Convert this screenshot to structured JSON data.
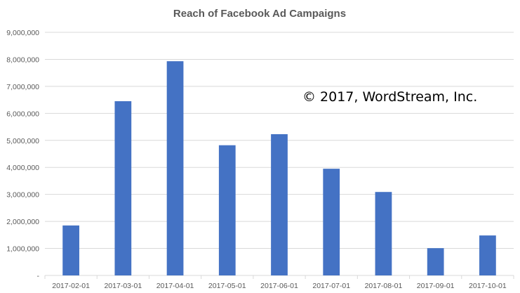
{
  "chart_data": {
    "type": "bar",
    "title": "Reach of Facebook Ad Campaigns",
    "xlabel": "",
    "ylabel": "",
    "categories": [
      "2017-02-01",
      "2017-03-01",
      "2017-04-01",
      "2017-05-01",
      "2017-06-01",
      "2017-07-01",
      "2017-08-01",
      "2017-09-01",
      "2017-10-01"
    ],
    "values": [
      1850000,
      6450000,
      7930000,
      4820000,
      5230000,
      3950000,
      3090000,
      1010000,
      1480000
    ],
    "ylim": [
      0,
      9000000
    ],
    "yticks": [
      0,
      1000000,
      2000000,
      3000000,
      4000000,
      5000000,
      6000000,
      7000000,
      8000000,
      9000000
    ],
    "ytick_labels": [
      "-",
      "1,000,000",
      "2,000,000",
      "3,000,000",
      "4,000,000",
      "5,000,000",
      "6,000,000",
      "7,000,000",
      "8,000,000",
      "9,000,000"
    ],
    "grid": true,
    "legend": "none",
    "bar_color": "#4472C4",
    "grid_color": "#D9D9D9"
  },
  "watermark": "© 2017, WordStream, Inc."
}
